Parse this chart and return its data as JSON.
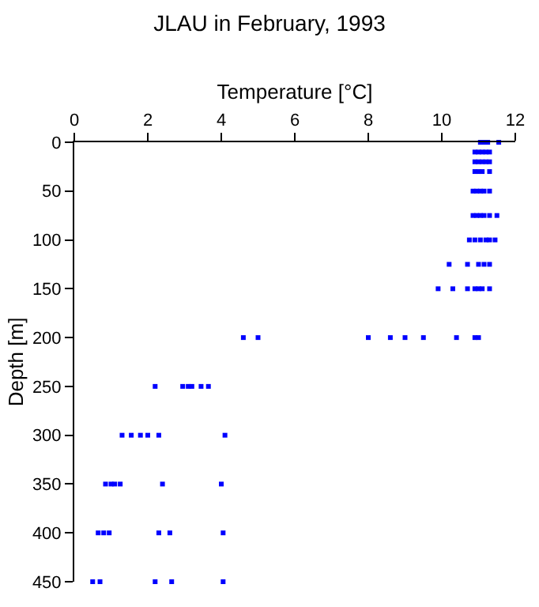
{
  "chart_data": {
    "type": "scatter",
    "title": "JLAU in February, 1993",
    "xlabel": "Temperature [°C]",
    "ylabel": "Depth [m]",
    "x": [
      11.05,
      11.15,
      11.25,
      11.55,
      10.9,
      11.0,
      11.1,
      11.2,
      11.3,
      10.9,
      11.0,
      11.1,
      11.2,
      11.3,
      10.9,
      11.0,
      11.1,
      11.3,
      10.85,
      10.95,
      11.05,
      11.15,
      11.3,
      10.85,
      10.95,
      11.05,
      11.15,
      11.3,
      11.5,
      10.75,
      10.9,
      11.05,
      11.2,
      11.3,
      11.45,
      10.2,
      10.7,
      11.0,
      11.15,
      11.3,
      9.9,
      10.3,
      10.7,
      10.9,
      11.0,
      11.1,
      11.3,
      4.6,
      5.0,
      8.0,
      8.6,
      9.0,
      9.5,
      10.4,
      10.9,
      11.0,
      2.2,
      2.95,
      3.1,
      3.2,
      3.45,
      3.65,
      1.3,
      1.55,
      1.8,
      2.0,
      2.3,
      4.1,
      0.85,
      1.0,
      1.1,
      1.25,
      2.4,
      4.0,
      0.65,
      0.8,
      0.95,
      2.3,
      2.6,
      4.05,
      0.5,
      0.7,
      2.2,
      2.65,
      4.05
    ],
    "series": [
      {
        "color": "#0000ff",
        "values": [
          0,
          0,
          0,
          0,
          10,
          10,
          10,
          10,
          10,
          20,
          20,
          20,
          20,
          20,
          30,
          30,
          30,
          30,
          50,
          50,
          50,
          50,
          50,
          75,
          75,
          75,
          75,
          75,
          75,
          100,
          100,
          100,
          100,
          100,
          100,
          125,
          125,
          125,
          125,
          125,
          150,
          150,
          150,
          150,
          150,
          150,
          150,
          200,
          200,
          200,
          200,
          200,
          200,
          200,
          200,
          200,
          250,
          250,
          250,
          250,
          250,
          250,
          300,
          300,
          300,
          300,
          300,
          300,
          350,
          350,
          350,
          350,
          350,
          350,
          400,
          400,
          400,
          400,
          400,
          400,
          450,
          450,
          450,
          450,
          450
        ]
      }
    ],
    "xlim": [
      0,
      12
    ],
    "xticks": [
      0,
      2,
      4,
      6,
      8,
      10,
      12
    ],
    "ylim": [
      450,
      0
    ],
    "yticks": [
      0,
      50,
      100,
      150,
      200,
      250,
      300,
      350,
      400,
      450
    ],
    "marker": "square"
  }
}
